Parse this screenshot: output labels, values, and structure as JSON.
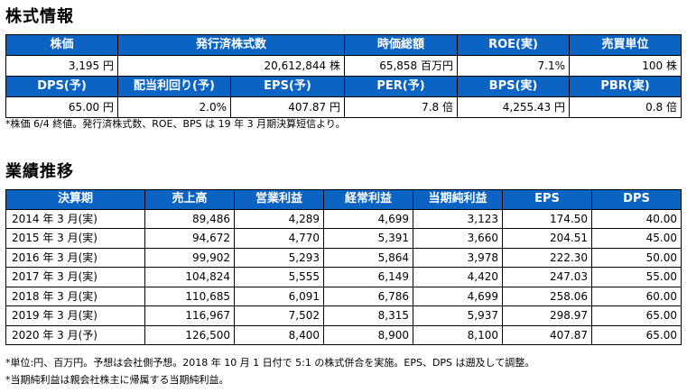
{
  "stock_info": {
    "title": "株式情報",
    "row1_headers": [
      "株価",
      "発行済株式数",
      "時価総額",
      "ROE(実)",
      "売買単位"
    ],
    "row1_values": [
      "3,195 円",
      "20,612,844 株",
      "65,858 百万円",
      "7.1%",
      "100 株"
    ],
    "row2_cells": [
      {
        "label": "DPS(予)",
        "value": "65.00 円"
      },
      {
        "label": "配当利回り(予)",
        "value": "2.0%"
      },
      {
        "label": "EPS(予)",
        "value": "407.87 円"
      },
      {
        "label": "PER(予)",
        "value": "7.8 倍"
      },
      {
        "label": "BPS(実)",
        "value": "4,255.43 円"
      },
      {
        "label": "PBR(実)",
        "value": "0.8 倍"
      }
    ],
    "note": "*株価 6/4 終値。発行済株式数、ROE、BPS は 19 年 3 月期決算短信より。"
  },
  "performance": {
    "title": "業績推移",
    "headers": [
      "決算期",
      "売上高",
      "営業利益",
      "経常利益",
      "当期純利益",
      "EPS",
      "DPS"
    ],
    "rows": [
      [
        "2014 年 3 月(実)",
        "89,486",
        "4,289",
        "4,699",
        "3,123",
        "174.50",
        "40.00"
      ],
      [
        "2015 年 3 月(実)",
        "94,672",
        "4,770",
        "5,391",
        "3,660",
        "204.51",
        "45.00"
      ],
      [
        "2016 年 3 月(実)",
        "99,902",
        "5,293",
        "5,864",
        "3,978",
        "222.30",
        "50.00"
      ],
      [
        "2017 年 3 月(実)",
        "104,824",
        "5,555",
        "6,149",
        "4,420",
        "247.03",
        "55.00"
      ],
      [
        "2018 年 3 月(実)",
        "110,685",
        "6,091",
        "6,786",
        "4,699",
        "258.06",
        "60.00"
      ],
      [
        "2019 年 3 月(実)",
        "116,967",
        "7,502",
        "8,315",
        "5,937",
        "298.97",
        "65.00"
      ],
      [
        "2020 年 3 月(予)",
        "126,500",
        "8,400",
        "8,900",
        "8,100",
        "407.87",
        "65.00"
      ]
    ],
    "note1": "*単位:円、百万円。予想は会社側予想。2018 年 10 月 1 日付で 5:1 の株式併合を実施。EPS、DPS は遡及して調整。",
    "note2": "*当期純利益は親会社株主に帰属する当期純利益。"
  },
  "colors": {
    "header_bg": "#0b63c4",
    "header_text": "#ffffff"
  }
}
